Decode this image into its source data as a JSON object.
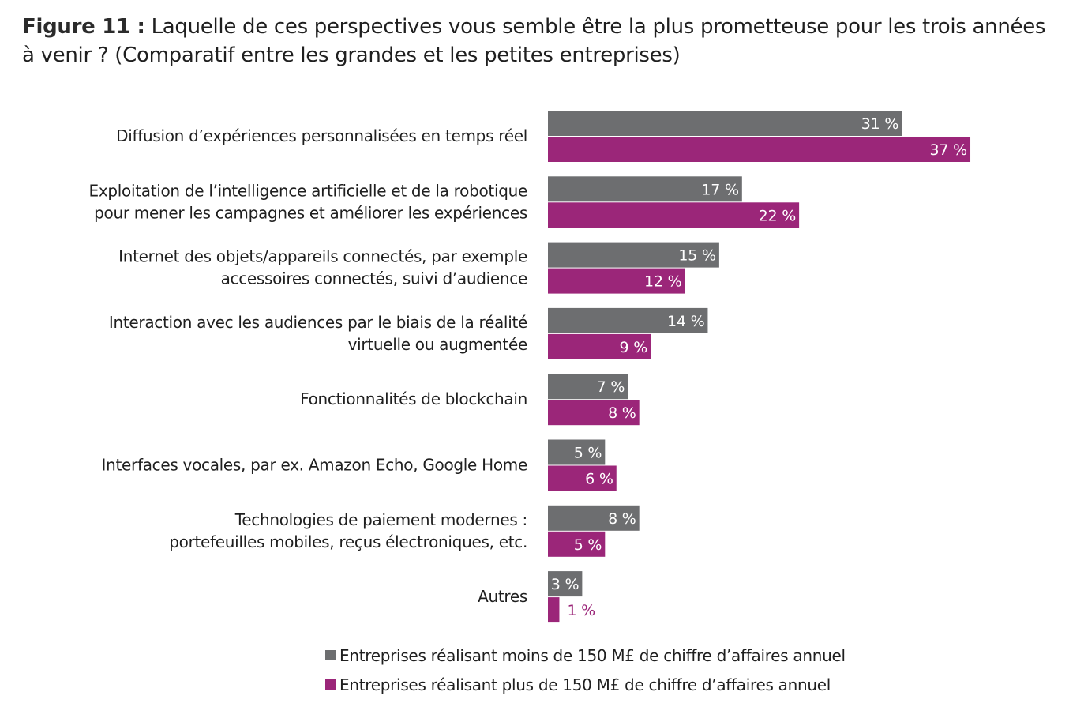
{
  "title": {
    "prefix": "Figure 11 :",
    "text": " Laquelle de ces perspectives vous semble être la plus prometteuse pour les trois années à venir ? (Comparatif entre les grandes et les petites entreprises)"
  },
  "colors": {
    "series_small": "#6d6e70",
    "series_large": "#9b2679",
    "label_inside": "#ffffff"
  },
  "chart_data": {
    "type": "bar",
    "orientation": "horizontal",
    "title": "Laquelle de ces perspectives vous semble être la plus prometteuse pour les trois années à venir ? (Comparatif entre les grandes et les petites entreprises)",
    "unit_suffix": " %",
    "xlim": [
      0,
      37
    ],
    "grid": false,
    "categories": [
      [
        "Diffusion d’expériences personnalisées en temps réel"
      ],
      [
        "Exploitation de l’intelligence artificielle et de la robotique",
        "pour mener les campagnes et améliorer les expériences"
      ],
      [
        "Internet des objets/appareils connectés, par exemple",
        "accessoires connectés, suivi d’audience"
      ],
      [
        "Interaction avec les audiences par le biais de la réalité",
        "virtuelle ou augmentée"
      ],
      [
        "Fonctionnalités de blockchain"
      ],
      [
        "Interfaces vocales, par ex. Amazon Echo, Google Home"
      ],
      [
        "Technologies de paiement modernes :",
        "portefeuilles mobiles, reçus électroniques, etc."
      ],
      [
        "Autres"
      ]
    ],
    "series": [
      {
        "name": "Entreprises réalisant moins de 150 M£ de chiffre d’affaires annuel",
        "values": [
          31,
          17,
          15,
          14,
          7,
          5,
          8,
          3
        ]
      },
      {
        "name": "Entreprises réalisant plus de 150 M£ de chiffre d’affaires annuel",
        "values": [
          37,
          22,
          12,
          9,
          8,
          6,
          5,
          1
        ]
      }
    ],
    "value_labels": [
      [
        "31 %",
        "17 %",
        "15 %",
        "14 %",
        "7 %",
        "5 %",
        "8 %",
        "3 %"
      ],
      [
        "37 %",
        "22 %",
        "12 %",
        "9 %",
        "8 %",
        "6 %",
        "5 %",
        "1 %"
      ]
    ],
    "legend_position": "bottom"
  },
  "legend": {
    "small": "Entreprises réalisant moins de 150 M£ de chiffre d’affaires annuel",
    "large": "Entreprises réalisant plus de 150 M£ de chiffre d’affaires annuel"
  }
}
